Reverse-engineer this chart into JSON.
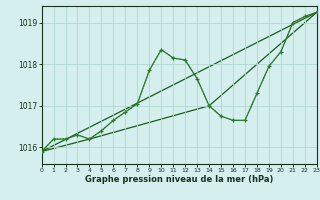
{
  "bg_color": "#d5eeee",
  "grid_color": "#b0d8d0",
  "line_color_dark": "#1a5c1a",
  "line_color_med": "#2d7a2d",
  "title": "Graphe pression niveau de la mer (hPa)",
  "xlim": [
    0,
    23
  ],
  "ylim": [
    1015.6,
    1019.4
  ],
  "yticks": [
    1016,
    1017,
    1018,
    1019
  ],
  "xticks": [
    0,
    1,
    2,
    3,
    4,
    5,
    6,
    7,
    8,
    9,
    10,
    11,
    12,
    13,
    14,
    15,
    16,
    17,
    18,
    19,
    20,
    21,
    22,
    23
  ],
  "dotted_x": [
    0,
    1,
    2,
    3,
    4,
    5,
    6,
    7,
    8,
    9,
    10,
    11,
    12,
    13,
    14,
    15,
    16,
    17,
    18,
    19,
    20,
    21,
    22
  ],
  "dotted_y": [
    1015.9,
    1016.2,
    1016.2,
    1016.3,
    1016.2,
    1016.4,
    1016.65,
    1016.85,
    1017.05,
    1017.85,
    1018.35,
    1018.15,
    1018.1,
    1017.65,
    1017.0,
    1016.75,
    1016.65,
    1016.65,
    1017.3,
    1017.95,
    1018.3,
    1019.0,
    1019.15
  ],
  "main_x": [
    0,
    1,
    2,
    3,
    4,
    5,
    6,
    7,
    8,
    9,
    10,
    11,
    12,
    13,
    14,
    15,
    16,
    17,
    18,
    19,
    20,
    21,
    22,
    23
  ],
  "main_y": [
    1015.9,
    1016.2,
    1016.2,
    1016.3,
    1016.2,
    1016.4,
    1016.65,
    1016.85,
    1017.05,
    1017.85,
    1018.35,
    1018.15,
    1018.1,
    1017.65,
    1017.0,
    1016.75,
    1016.65,
    1016.65,
    1017.3,
    1017.95,
    1018.3,
    1019.0,
    1019.15,
    1019.25
  ],
  "trend1_x": [
    0,
    23
  ],
  "trend1_y": [
    1015.9,
    1019.25
  ],
  "trend2_x": [
    0,
    4,
    14,
    23
  ],
  "trend2_y": [
    1015.9,
    1016.2,
    1017.0,
    1019.25
  ]
}
